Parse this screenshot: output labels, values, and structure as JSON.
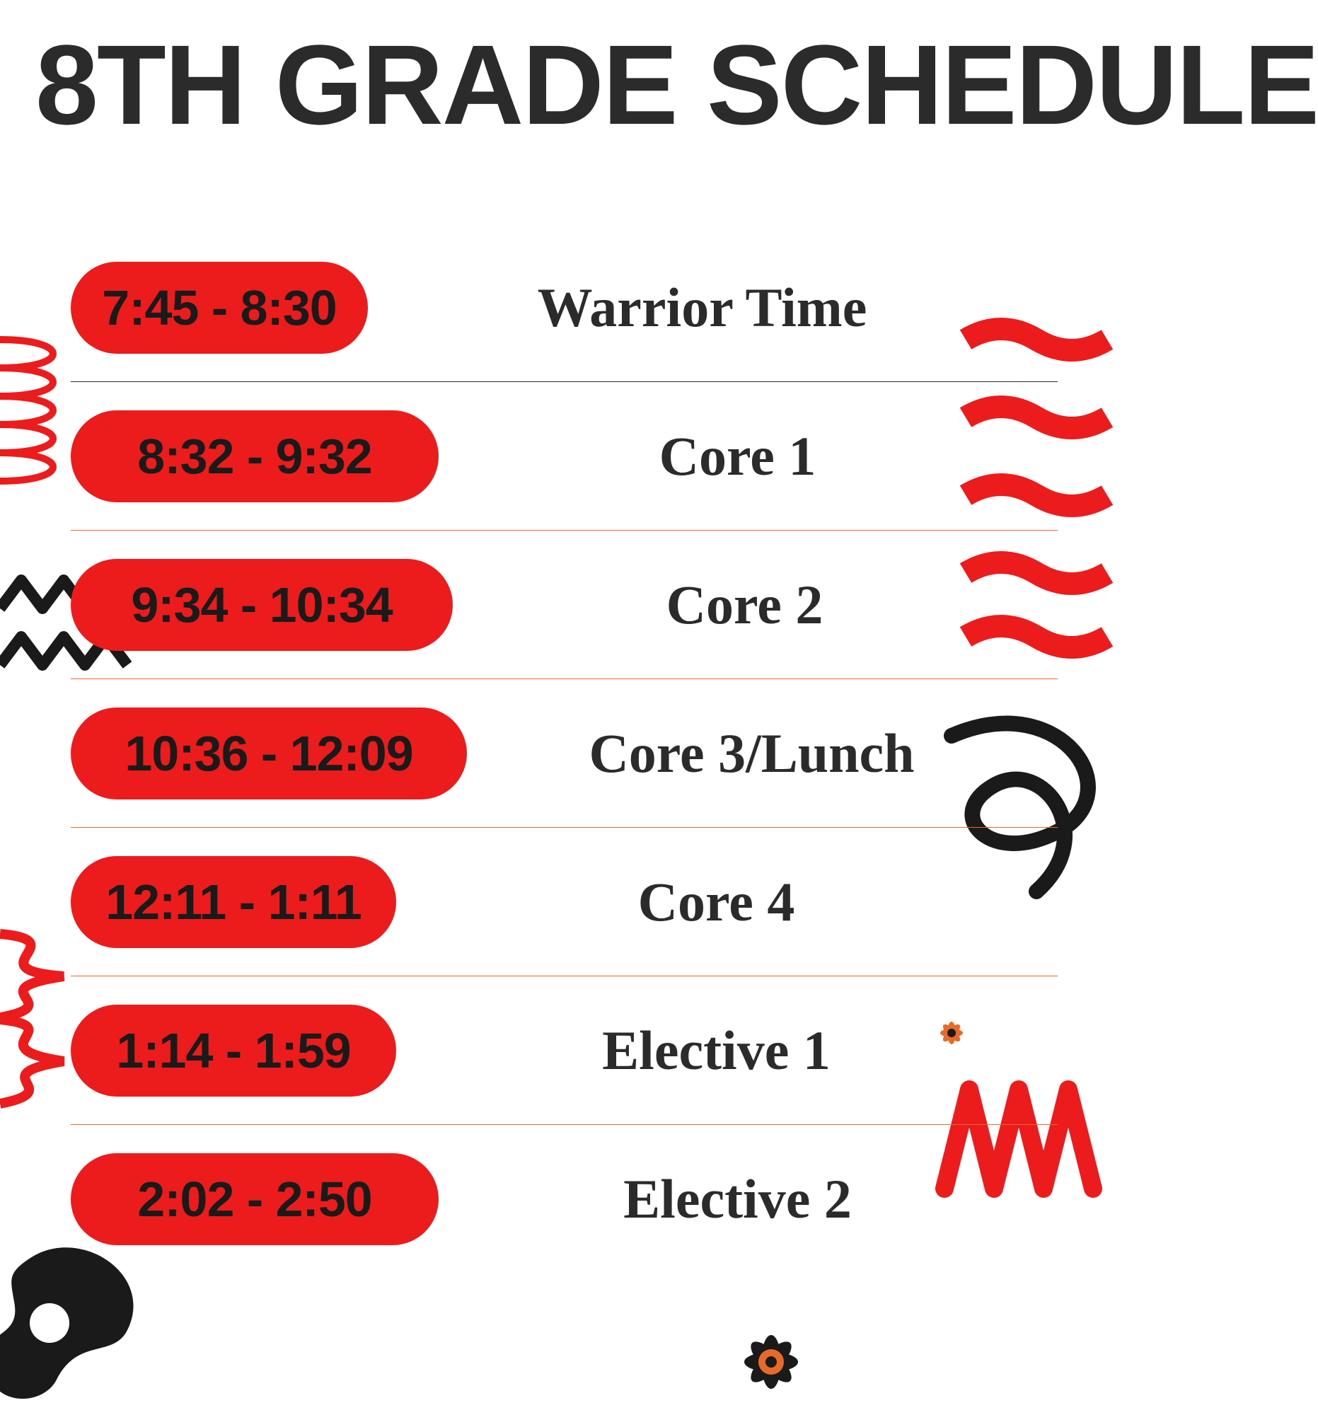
{
  "title": "8TH GRADE SCHEDULE",
  "style": {
    "background_color": "#ffffff",
    "title_color": "#2b2b2b",
    "title_font": "Impact",
    "title_fontsize": 160,
    "pill_bg": "#ed1c1c",
    "pill_text_color": "#1a1a1a",
    "pill_font": "Arial Black",
    "pill_fontsize": 70,
    "pill_radius": 70,
    "label_font": "Georgia",
    "label_fontsize": 78,
    "label_color": "#2b2b2b",
    "hr_colors": {
      "black": "#2b2b2b",
      "orange": "#e86a2a"
    },
    "decoration_colors": {
      "red": "#ed1c1c",
      "black": "#1a1a1a",
      "orange": "#e86a2a"
    }
  },
  "rows": [
    {
      "time": "7:45 - 8:30",
      "label": "Warrior Time",
      "hr": "black",
      "pill_width": 420
    },
    {
      "time": "8:32 - 9:32",
      "label": "Core 1",
      "hr": "orange",
      "pill_width": 520
    },
    {
      "time": "9:34 - 10:34",
      "label": "Core 2",
      "hr": "orange",
      "pill_width": 540
    },
    {
      "time": "10:36 - 12:09",
      "label": "Core 3/Lunch",
      "hr": "orange",
      "pill_width": 560
    },
    {
      "time": "12:11 - 1:11",
      "label": "Core 4",
      "hr": "orange",
      "pill_width": 460
    },
    {
      "time": "1:14 - 1:59",
      "label": "Elective 1",
      "hr": "orange",
      "pill_width": 460
    },
    {
      "time": "2:02 - 2:50",
      "label": "Elective 2",
      "hr": "none",
      "pill_width": 520
    }
  ]
}
